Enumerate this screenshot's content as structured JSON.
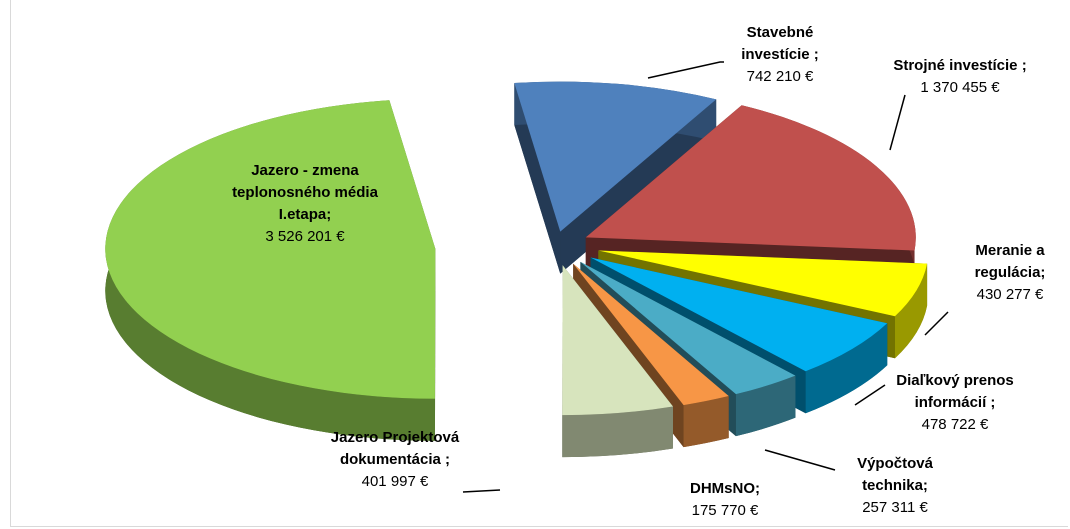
{
  "chart_data": {
    "type": "pie3d",
    "categories": [
      "Stavebné investície ;",
      "Strojné investície ;",
      "Meranie a regulácia;",
      "Diaľkový prenos informácií ;",
      "Výpočtová technika;",
      "DHMsNO;",
      "Jazero Projektová dokumentácia ;",
      "Jazero - zmena teplonosného média I.etapa;"
    ],
    "values": [
      742210,
      1370455,
      430277,
      478722,
      257311,
      175770,
      401997,
      3526201
    ],
    "value_labels": [
      "742 210 €",
      "1 370 455 €",
      "430 277 €",
      "478 722 €",
      "257 311 €",
      "175 770 €",
      "401 997 €",
      "3 526 201 €"
    ],
    "colors": [
      "#4f81bd",
      "#c0504d",
      "#ffff00",
      "#00b0f0",
      "#4bacc6",
      "#f79646",
      "#d7e4bd",
      "#92d050"
    ]
  }
}
